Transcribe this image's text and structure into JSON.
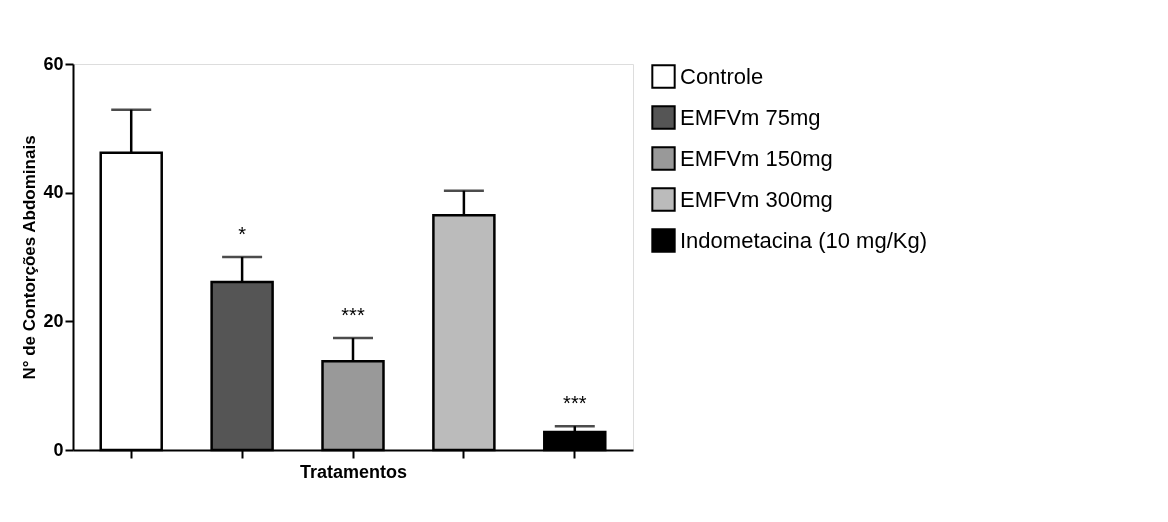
{
  "chart_data": {
    "type": "bar",
    "xlabel": "Tratamentos",
    "ylabel": "N° de Contorções Abdominais",
    "categories": [
      null,
      null,
      null,
      null,
      null
    ],
    "series": [
      {
        "name": "Controle",
        "color": "#ffffff",
        "values": [
          46.2,
          null,
          null,
          null,
          null
        ],
        "errors": [
          6.7,
          null,
          null,
          null,
          null
        ],
        "value_labels": [
          null,
          null,
          null,
          null,
          null
        ]
      },
      {
        "name": "EMFVm 75mg",
        "color": "#555555",
        "values": [
          null,
          26.1,
          null,
          null,
          null
        ],
        "errors": [
          null,
          3.9,
          null,
          null,
          null
        ],
        "value_labels": [
          null,
          "*",
          null,
          null,
          null
        ]
      },
      {
        "name": "EMFVm 150mg",
        "color": "#999999",
        "values": [
          null,
          null,
          13.8,
          null,
          null
        ],
        "errors": [
          null,
          null,
          3.6,
          null,
          null
        ],
        "value_labels": [
          null,
          null,
          "***",
          null,
          null
        ]
      },
      {
        "name": "EMFVm 300mg",
        "color": "#bbbbbb",
        "values": [
          null,
          null,
          null,
          36.5,
          null
        ],
        "errors": [
          null,
          null,
          null,
          3.8,
          null
        ],
        "value_labels": [
          null,
          null,
          null,
          null,
          null
        ]
      },
      {
        "name": "Indometacina (10 mg/Kg)",
        "color": "#000000",
        "values": [
          null,
          null,
          null,
          null,
          2.8
        ],
        "errors": [
          null,
          null,
          null,
          null,
          0.9
        ],
        "value_labels": [
          null,
          null,
          null,
          null,
          "***"
        ]
      }
    ],
    "ylim": [
      0,
      60
    ],
    "yticks": [
      0,
      20,
      40,
      60
    ],
    "grid": false,
    "legend": "right",
    "tick_labels": "y"
  }
}
